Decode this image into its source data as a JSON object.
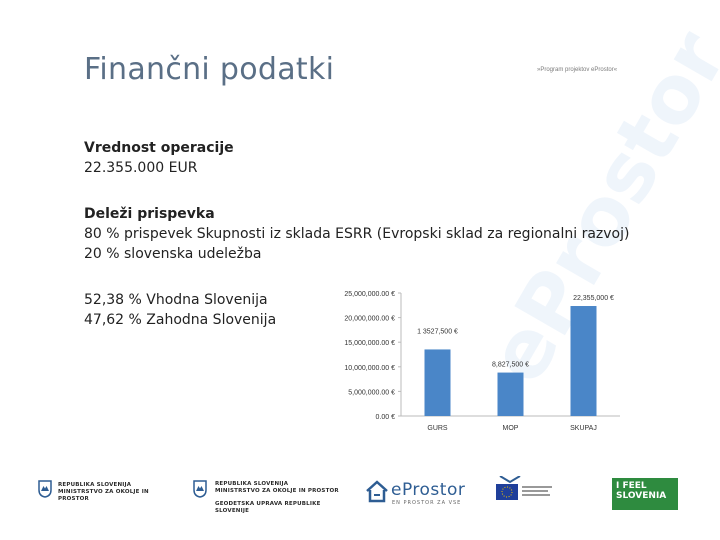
{
  "slide": {
    "title": "Finančni podatki",
    "subtitle": "»Program projektov eProstor«"
  },
  "operation": {
    "heading": "Vrednost operacije",
    "value": "22.355.000 EUR"
  },
  "contributions": {
    "heading": "Deleži prispevka",
    "line1": "80 % prispevek Skupnosti iz sklada ESRR (Evropski sklad za regionalni razvoj)",
    "line2": "20 % slovenska udeležba"
  },
  "regions": {
    "line1": "52,38 % Vhodna Slovenija",
    "line2": "47,62 % Zahodna Slovenija"
  },
  "chart_data": {
    "type": "bar",
    "categories": [
      "GURS",
      "MOP",
      "SKUPAJ"
    ],
    "values": [
      13527500,
      8827500,
      22355000
    ],
    "data_labels": [
      "1 3527,500 €",
      "8,827,500 €",
      "22,355,000 €"
    ],
    "y_ticks": [
      0,
      5000000,
      10000000,
      15000000,
      20000000,
      25000000
    ],
    "y_tick_labels": [
      "0.00 €",
      "5,000,000.00 €",
      "10,000,000.00 €",
      "15,000,000.00 €",
      "20,000,000.00 €",
      "25,000,000.00 €"
    ],
    "ylim": [
      0,
      25000000
    ],
    "bar_color": "#4a86c8",
    "grid": false
  },
  "footer": {
    "logo1_line1": "REPUBLIKA SLOVENIJA",
    "logo1_line2": "MINISTRSTVO ZA OKOLJE IN PROSTOR",
    "logo2_line1": "REPUBLIKA SLOVENIJA",
    "logo2_line2": "MINISTRSTVO ZA OKOLJE IN PROSTOR",
    "logo2_line3": "GEODETSKA UPRAVA REPUBLIKE SLOVENIJE",
    "eprostor_name": "eProstor",
    "eprostor_tag": "EN PROSTOR ZA VSE",
    "ifeel_line1": "I FEEL",
    "ifeel_line2": "SLOVENIA"
  },
  "colors": {
    "title": "#5a6f86",
    "accent": "#2e5d93",
    "ifeel": "#2e8b3f"
  }
}
